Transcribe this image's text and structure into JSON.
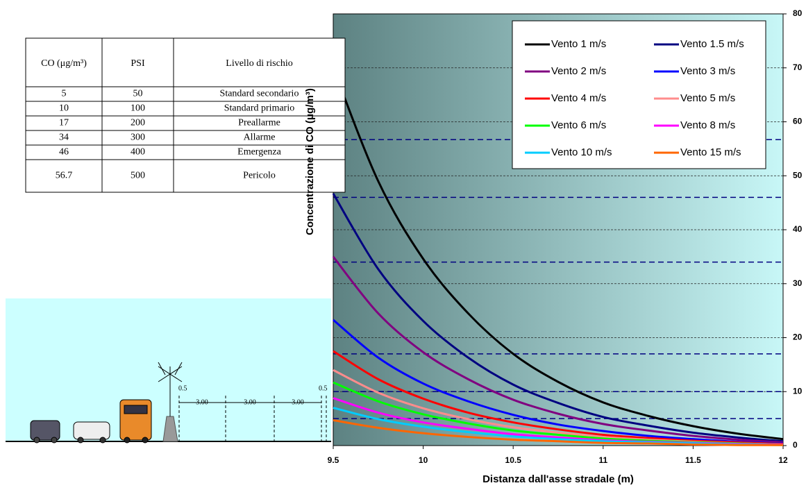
{
  "table": {
    "header": [
      "CO (μg/m³)",
      "PSI",
      "Livello di rischio"
    ],
    "rows": [
      [
        "5",
        "50",
        "Standard secondario"
      ],
      [
        "10",
        "100",
        "Standard primario"
      ],
      [
        "17",
        "200",
        "Preallarme"
      ],
      [
        "34",
        "300",
        "Allarme"
      ],
      [
        "46",
        "400",
        "Emergenza"
      ],
      [
        "56.7",
        "500",
        "Pericolo"
      ]
    ]
  },
  "illustration": {
    "dimensions": [
      "0.5",
      "3.00",
      "3.00",
      "3.00",
      "0.5"
    ]
  },
  "chart_data": {
    "type": "line",
    "x_label": "Distanza dall'asse stradale (m)",
    "y_label": "Concentrazione di CO (μg/m³)",
    "x": [
      9.5,
      9.75,
      10,
      10.25,
      10.5,
      10.75,
      11,
      11.25,
      11.5,
      11.75,
      12
    ],
    "xlim": [
      9.5,
      12
    ],
    "xticks": [
      9.5,
      10,
      10.5,
      11,
      11.5,
      12
    ],
    "ylim": [
      0,
      80
    ],
    "yticks": [
      0,
      10,
      20,
      30,
      40,
      50,
      60,
      70,
      80
    ],
    "grid": true,
    "legend": "top-right",
    "series": [
      {
        "name": "Vento 1 m/s",
        "color": "#000000",
        "values": [
          70,
          49,
          34.6,
          24.5,
          17,
          11.8,
          8,
          5.5,
          3.6,
          2.2,
          1.2
        ]
      },
      {
        "name": "Vento 1.5 m/s",
        "color": "#000080",
        "values": [
          46.7,
          32.7,
          23.1,
          16.3,
          11.3,
          7.9,
          5.3,
          3.7,
          2.4,
          1.5,
          0.8
        ]
      },
      {
        "name": "Vento 2 m/s",
        "color": "#800080",
        "values": [
          35,
          24.5,
          17.3,
          12.3,
          8.5,
          5.9,
          4,
          2.8,
          1.8,
          1.1,
          0.6
        ]
      },
      {
        "name": "Vento 3 m/s",
        "color": "#0000ff",
        "values": [
          23.3,
          16.3,
          11.5,
          8.2,
          5.7,
          3.9,
          2.7,
          1.8,
          1.2,
          0.7,
          0.4
        ]
      },
      {
        "name": "Vento 4 m/s",
        "color": "#ff0000",
        "values": [
          17.5,
          12.3,
          8.7,
          6.1,
          4.3,
          3,
          2,
          1.4,
          0.9,
          0.6,
          0.3
        ]
      },
      {
        "name": "Vento 5 m/s",
        "color": "#ff8c8c",
        "values": [
          14,
          9.8,
          6.9,
          4.9,
          3.4,
          2.4,
          1.6,
          1.1,
          0.7,
          0.4,
          0.2
        ]
      },
      {
        "name": "Vento 6 m/s",
        "color": "#00ff00",
        "values": [
          11.7,
          8.2,
          5.8,
          4.1,
          2.8,
          2,
          1.3,
          0.9,
          0.6,
          0.4,
          0.2
        ]
      },
      {
        "name": "Vento 8 m/s",
        "color": "#ff00ff",
        "values": [
          8.8,
          6.1,
          4.3,
          3.1,
          2.1,
          1.5,
          1,
          0.7,
          0.5,
          0.3,
          0.2
        ]
      },
      {
        "name": "Vento 10 m/s",
        "color": "#00ccff",
        "values": [
          7,
          4.9,
          3.5,
          2.5,
          1.7,
          1.2,
          0.8,
          0.6,
          0.4,
          0.2,
          0.1
        ]
      },
      {
        "name": "Vento 15 m/s",
        "color": "#ff6600",
        "values": [
          4.7,
          3.3,
          2.3,
          1.6,
          1.1,
          0.8,
          0.5,
          0.4,
          0.2,
          0.1,
          0.1
        ]
      }
    ]
  }
}
